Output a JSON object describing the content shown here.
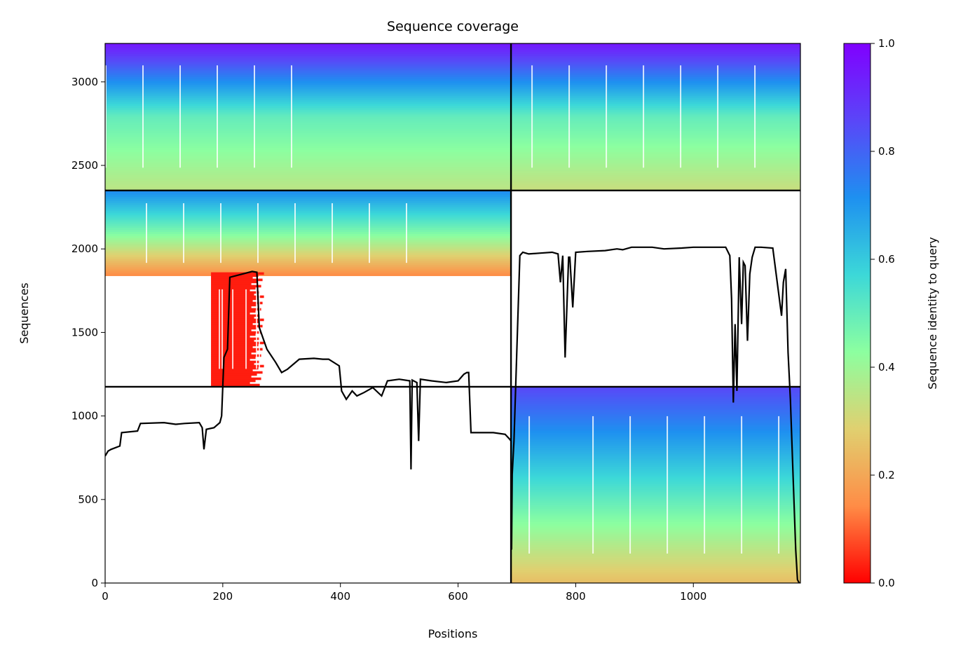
{
  "chart_data": {
    "type": "heatmap",
    "title": "Sequence coverage",
    "xlabel": "Positions",
    "ylabel": "Sequences",
    "xlim": [
      0,
      1182
    ],
    "ylim": [
      0,
      3230
    ],
    "x_ticks": [
      0,
      200,
      400,
      600,
      800,
      1000
    ],
    "y_ticks": [
      0,
      500,
      1000,
      1500,
      2000,
      2500,
      3000
    ],
    "grid": false,
    "colorbar": {
      "label": "Sequence identity to query",
      "range": [
        0.0,
        1.0
      ],
      "ticks": [
        "0.0",
        "0.2",
        "0.4",
        "0.6",
        "0.8",
        "1.0"
      ],
      "colormap": "rainbow_r",
      "stops": [
        "#ff0000",
        "#ff8c46",
        "#e0d070",
        "#8cffa0",
        "#3cd8d8",
        "#1e90f0",
        "#5a46f8",
        "#8000ff"
      ]
    },
    "chain_boundary_x": 690,
    "block_boundary_y": [
      1175,
      2350
    ],
    "blocks": [
      {
        "name": "chain A top",
        "x": [
          0,
          690
        ],
        "y": [
          2355,
          3230
        ],
        "identity_top": 0.95,
        "identity_mid": 0.5,
        "identity_bottom": 0.35
      },
      {
        "name": "chain B top",
        "x": [
          690,
          1182
        ],
        "y": [
          2355,
          3230
        ],
        "identity_top": 0.95,
        "identity_mid": 0.5,
        "identity_bottom": 0.33
      },
      {
        "name": "chain A middle",
        "x": [
          0,
          690
        ],
        "y": [
          1840,
          2350
        ],
        "identity_top": 0.72,
        "identity_mid": 0.45,
        "identity_bottom": 0.15
      },
      {
        "name": "chain A low-identity",
        "x": [
          180,
          270
        ],
        "y": [
          1180,
          1860
        ],
        "identity": 0.03
      },
      {
        "name": "chain B bottom",
        "x": [
          690,
          1182
        ],
        "y": [
          0,
          1175
        ],
        "identity_top": 0.85,
        "identity_mid": 0.55,
        "identity_bottom": 0.25
      }
    ],
    "coverage": {
      "name": "coverage",
      "color": "#000000",
      "x": [
        0,
        5,
        10,
        25,
        28,
        55,
        60,
        100,
        120,
        135,
        160,
        165,
        168,
        172,
        185,
        195,
        198,
        202,
        208,
        212,
        250,
        258,
        262,
        275,
        290,
        300,
        310,
        330,
        355,
        370,
        380,
        398,
        402,
        410,
        420,
        428,
        440,
        455,
        470,
        480,
        500,
        518,
        520,
        522,
        530,
        533,
        536,
        555,
        580,
        600,
        610,
        615,
        618,
        622,
        660,
        680,
        688,
        690,
        691,
        692,
        695,
        705,
        710,
        715,
        720,
        740,
        760,
        770,
        774,
        778,
        782,
        788,
        790,
        795,
        800,
        820,
        850,
        870,
        880,
        895,
        930,
        950,
        980,
        1000,
        1030,
        1055,
        1062,
        1065,
        1068,
        1071,
        1074,
        1078,
        1082,
        1085,
        1088,
        1092,
        1096,
        1100,
        1105,
        1115,
        1135,
        1150,
        1153,
        1157,
        1161,
        1165,
        1170,
        1174,
        1177,
        1180
      ],
      "y": [
        760,
        790,
        800,
        820,
        900,
        910,
        955,
        960,
        950,
        955,
        960,
        930,
        800,
        920,
        930,
        960,
        1000,
        1350,
        1400,
        1830,
        1865,
        1860,
        1530,
        1400,
        1320,
        1260,
        1280,
        1340,
        1345,
        1340,
        1340,
        1300,
        1150,
        1100,
        1150,
        1120,
        1140,
        1170,
        1120,
        1210,
        1220,
        1210,
        680,
        1215,
        1200,
        850,
        1220,
        1210,
        1200,
        1210,
        1250,
        1260,
        1260,
        900,
        900,
        890,
        860,
        850,
        200,
        650,
        850,
        1960,
        1980,
        1975,
        1970,
        1975,
        1980,
        1970,
        1800,
        1960,
        1350,
        1950,
        1950,
        1650,
        1980,
        1985,
        1990,
        2000,
        1995,
        2010,
        2010,
        2000,
        2005,
        2010,
        2010,
        2010,
        1960,
        1700,
        1080,
        1550,
        1150,
        1950,
        1550,
        1920,
        1900,
        1450,
        1850,
        1950,
        2010,
        2010,
        2005,
        1600,
        1800,
        1880,
        1380,
        1100,
        600,
        200,
        20,
        0
      ]
    }
  }
}
